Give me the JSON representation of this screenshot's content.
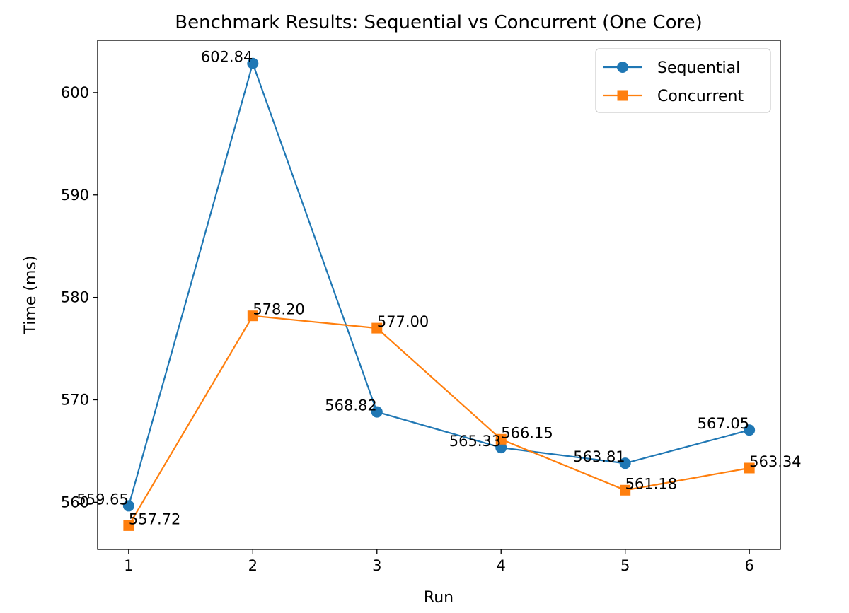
{
  "chart_data": {
    "type": "line",
    "title": "Benchmark Results: Sequential vs Concurrent (One Core)",
    "xlabel": "Run",
    "ylabel": "Time (ms)",
    "x": [
      1,
      2,
      3,
      4,
      5,
      6
    ],
    "xticks": [
      "1",
      "2",
      "3",
      "4",
      "5",
      "6"
    ],
    "xlim": [
      0.75,
      6.25
    ],
    "ylim": [
      555.4,
      605.1
    ],
    "yticks": [
      560,
      570,
      580,
      590,
      600
    ],
    "grid": false,
    "legend_position": "top-right",
    "series": [
      {
        "name": "Sequential",
        "marker": "circle",
        "color": "#1f77b4",
        "values": [
          559.65,
          602.84,
          568.82,
          565.33,
          563.81,
          567.05
        ],
        "labels": [
          "559.65",
          "602.84",
          "568.82",
          "565.33",
          "563.81",
          "567.05"
        ]
      },
      {
        "name": "Concurrent",
        "marker": "square",
        "color": "#ff7f0e",
        "values": [
          557.72,
          578.2,
          577.0,
          566.15,
          561.18,
          563.34
        ],
        "labels": [
          "557.72",
          "578.20",
          "577.00",
          "566.15",
          "561.18",
          "563.34"
        ]
      }
    ]
  }
}
